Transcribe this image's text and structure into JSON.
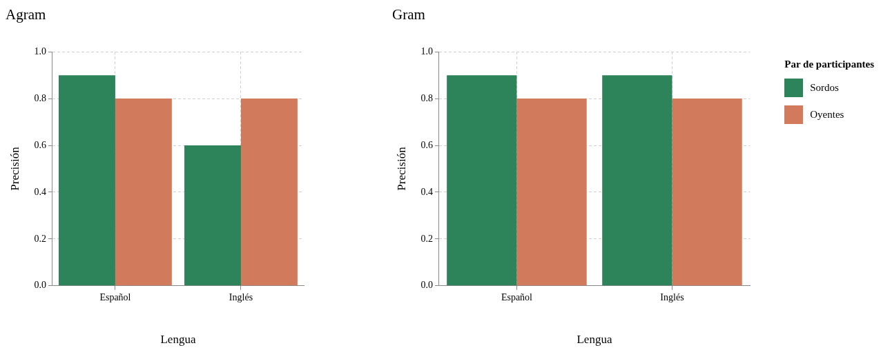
{
  "chart_data": [
    {
      "type": "bar",
      "title": "Agram",
      "xlabel": "Lengua",
      "ylabel": "Precisión",
      "categories": [
        "Español",
        "Inglés"
      ],
      "series": [
        {
          "color": "#2e845a",
          "values": [
            0.9,
            0.6
          ]
        },
        {
          "color": "#d17b5c",
          "values": [
            0.8,
            0.8
          ]
        }
      ],
      "ylim": [
        0,
        1
      ],
      "yticks": [
        {
          "value": 0,
          "label": "0.0"
        },
        {
          "value": 0.2,
          "label": "0.2"
        },
        {
          "value": 0.4,
          "label": "0.4"
        },
        {
          "value": 0.6,
          "label": "0.6"
        },
        {
          "value": 0.8,
          "label": "0.8"
        },
        {
          "value": 1,
          "label": "1.0"
        }
      ],
      "grid": true,
      "legend": false
    },
    {
      "type": "bar",
      "title": "Gram",
      "xlabel": "Lengua",
      "ylabel": "Precisión",
      "categories": [
        "Español",
        "Inglés"
      ],
      "legend_title": "Par de participantes",
      "series": [
        {
          "name": "Sordos",
          "color": "#2e845a",
          "values": [
            0.9,
            0.9
          ]
        },
        {
          "name": "Oyentes",
          "color": "#d17b5c",
          "values": [
            0.8,
            0.8
          ]
        }
      ],
      "ylim": [
        0,
        1
      ],
      "yticks": [
        {
          "value": 0,
          "label": "0.0"
        },
        {
          "value": 0.2,
          "label": "0.2"
        },
        {
          "value": 0.4,
          "label": "0.4"
        },
        {
          "value": 0.6,
          "label": "0.6"
        },
        {
          "value": 0.8,
          "label": "0.8"
        },
        {
          "value": 1,
          "label": "1.0"
        }
      ],
      "grid": true,
      "legend": "right"
    }
  ]
}
